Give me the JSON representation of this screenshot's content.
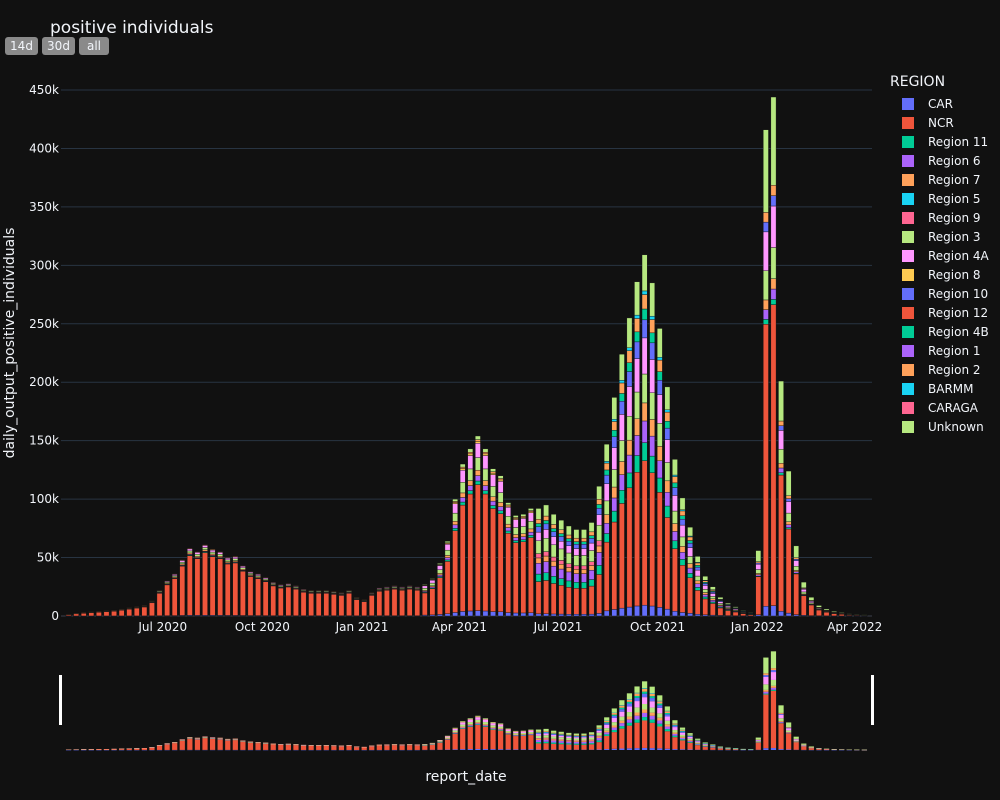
{
  "title": "positive individuals",
  "range_buttons": [
    "14d",
    "30d",
    "all"
  ],
  "legend_title": "REGION",
  "chart_data": {
    "type": "bar",
    "barmode": "stack",
    "xlabel": "report_date",
    "ylabel": "daily_output_positive_individuals",
    "x_ticks": [
      "Jul 2020",
      "Oct 2020",
      "Jan 2021",
      "Apr 2021",
      "Jul 2021",
      "Oct 2021",
      "Jan 2022",
      "Apr 2022"
    ],
    "y_ticks": [
      "0",
      "50k",
      "100k",
      "150k",
      "200k",
      "250k",
      "300k",
      "350k",
      "400k",
      "450k"
    ],
    "ylim": [
      0,
      450000
    ],
    "grid": true,
    "legend_position": "right",
    "rangeslider": true,
    "series_names": [
      "CAR",
      "NCR",
      "Region 11",
      "Region 6",
      "Region 7",
      "Region 5",
      "Region 9",
      "Region 3",
      "Region 4A",
      "Region 8",
      "Region 10",
      "Region 12",
      "Region 4B",
      "Region 1",
      "Region 2",
      "BARMM",
      "CARAGA",
      "Unknown"
    ],
    "colors": [
      "#636efa",
      "#EF553B",
      "#00cc96",
      "#ab63fa",
      "#FFA15A",
      "#19d3f3",
      "#FF6692",
      "#B6E880",
      "#FF97FF",
      "#FECB52",
      "#636efa",
      "#EF553B",
      "#00cc96",
      "#ab63fa",
      "#FFA15A",
      "#19d3f3",
      "#FF6692",
      "#B6E880"
    ],
    "weekly_totals": [
      {
        "week": "2020-04-05",
        "total": 1500
      },
      {
        "week": "2020-04-12",
        "total": 2500
      },
      {
        "week": "2020-04-19",
        "total": 3000
      },
      {
        "week": "2020-04-26",
        "total": 3500
      },
      {
        "week": "2020-05-03",
        "total": 4000
      },
      {
        "week": "2020-05-10",
        "total": 4500
      },
      {
        "week": "2020-05-17",
        "total": 5000
      },
      {
        "week": "2020-05-24",
        "total": 6000
      },
      {
        "week": "2020-05-31",
        "total": 7000
      },
      {
        "week": "2020-06-07",
        "total": 8000
      },
      {
        "week": "2020-06-14",
        "total": 9000
      },
      {
        "week": "2020-06-21",
        "total": 13000
      },
      {
        "week": "2020-06-28",
        "total": 22000
      },
      {
        "week": "2020-07-05",
        "total": 30000
      },
      {
        "week": "2020-07-12",
        "total": 36000
      },
      {
        "week": "2020-07-19",
        "total": 48000
      },
      {
        "week": "2020-07-26",
        "total": 58000
      },
      {
        "week": "2020-08-02",
        "total": 55000
      },
      {
        "week": "2020-08-09",
        "total": 61000
      },
      {
        "week": "2020-08-16",
        "total": 57000
      },
      {
        "week": "2020-08-23",
        "total": 55000
      },
      {
        "week": "2020-08-30",
        "total": 50000
      },
      {
        "week": "2020-09-06",
        "total": 51000
      },
      {
        "week": "2020-09-13",
        "total": 43000
      },
      {
        "week": "2020-09-20",
        "total": 38000
      },
      {
        "week": "2020-09-27",
        "total": 36000
      },
      {
        "week": "2020-10-04",
        "total": 33000
      },
      {
        "week": "2020-10-11",
        "total": 29000
      },
      {
        "week": "2020-10-18",
        "total": 27000
      },
      {
        "week": "2020-10-25",
        "total": 28000
      },
      {
        "week": "2020-11-01",
        "total": 26000
      },
      {
        "week": "2020-11-08",
        "total": 23000
      },
      {
        "week": "2020-11-15",
        "total": 22000
      },
      {
        "week": "2020-11-22",
        "total": 22000
      },
      {
        "week": "2020-11-29",
        "total": 22000
      },
      {
        "week": "2020-12-06",
        "total": 21000
      },
      {
        "week": "2020-12-13",
        "total": 20000
      },
      {
        "week": "2020-12-20",
        "total": 22000
      },
      {
        "week": "2020-12-27",
        "total": 16000
      },
      {
        "week": "2021-01-03",
        "total": 14000
      },
      {
        "week": "2021-01-10",
        "total": 20000
      },
      {
        "week": "2021-01-17",
        "total": 24000
      },
      {
        "week": "2021-01-24",
        "total": 25000
      },
      {
        "week": "2021-01-31",
        "total": 26000
      },
      {
        "week": "2021-02-07",
        "total": 25000
      },
      {
        "week": "2021-02-14",
        "total": 26000
      },
      {
        "week": "2021-02-21",
        "total": 25000
      },
      {
        "week": "2021-02-28",
        "total": 27000
      },
      {
        "week": "2021-03-07",
        "total": 32000
      },
      {
        "week": "2021-03-14",
        "total": 45000
      },
      {
        "week": "2021-03-21",
        "total": 64000
      },
      {
        "week": "2021-03-28",
        "total": 100000
      },
      {
        "week": "2021-04-04",
        "total": 130000
      },
      {
        "week": "2021-04-11",
        "total": 143000
      },
      {
        "week": "2021-04-18",
        "total": 154000
      },
      {
        "week": "2021-04-25",
        "total": 143000
      },
      {
        "week": "2021-05-02",
        "total": 126000
      },
      {
        "week": "2021-05-09",
        "total": 120000
      },
      {
        "week": "2021-05-16",
        "total": 97000
      },
      {
        "week": "2021-05-23",
        "total": 86000
      },
      {
        "week": "2021-05-30",
        "total": 87000
      },
      {
        "week": "2021-06-06",
        "total": 92000
      },
      {
        "week": "2021-06-13",
        "total": 92000
      },
      {
        "week": "2021-06-20",
        "total": 95000
      },
      {
        "week": "2021-06-27",
        "total": 87000
      },
      {
        "week": "2021-07-04",
        "total": 82000
      },
      {
        "week": "2021-07-11",
        "total": 77000
      },
      {
        "week": "2021-07-18",
        "total": 74000
      },
      {
        "week": "2021-07-25",
        "total": 74000
      },
      {
        "week": "2021-08-01",
        "total": 80000
      },
      {
        "week": "2021-08-08",
        "total": 111000
      },
      {
        "week": "2021-08-15",
        "total": 147000
      },
      {
        "week": "2021-08-22",
        "total": 187000
      },
      {
        "week": "2021-08-29",
        "total": 224000
      },
      {
        "week": "2021-09-05",
        "total": 255000
      },
      {
        "week": "2021-09-12",
        "total": 286000
      },
      {
        "week": "2021-09-19",
        "total": 309000
      },
      {
        "week": "2021-09-26",
        "total": 285000
      },
      {
        "week": "2021-10-03",
        "total": 246000
      },
      {
        "week": "2021-10-10",
        "total": 196000
      },
      {
        "week": "2021-10-17",
        "total": 134000
      },
      {
        "week": "2021-10-24",
        "total": 101000
      },
      {
        "week": "2021-10-31",
        "total": 76000
      },
      {
        "week": "2021-11-07",
        "total": 51000
      },
      {
        "week": "2021-11-14",
        "total": 34000
      },
      {
        "week": "2021-11-21",
        "total": 25000
      },
      {
        "week": "2021-11-28",
        "total": 16000
      },
      {
        "week": "2021-12-05",
        "total": 11000
      },
      {
        "week": "2021-12-12",
        "total": 8000
      },
      {
        "week": "2021-12-19",
        "total": 5000
      },
      {
        "week": "2021-12-26",
        "total": 3000
      },
      {
        "week": "2022-01-02",
        "total": 56000
      },
      {
        "week": "2022-01-09",
        "total": 416000
      },
      {
        "week": "2022-01-16",
        "total": 444000
      },
      {
        "week": "2022-01-23",
        "total": 201000
      },
      {
        "week": "2022-01-30",
        "total": 124000
      },
      {
        "week": "2022-02-06",
        "total": 60000
      },
      {
        "week": "2022-02-13",
        "total": 29000
      },
      {
        "week": "2022-02-20",
        "total": 16000
      },
      {
        "week": "2022-02-27",
        "total": 9000
      },
      {
        "week": "2022-03-06",
        "total": 6000
      },
      {
        "week": "2022-03-13",
        "total": 4000
      },
      {
        "week": "2022-03-20",
        "total": 3000
      },
      {
        "week": "2022-03-27",
        "total": 2000
      },
      {
        "week": "2022-04-03",
        "total": 1500
      },
      {
        "week": "2022-04-10",
        "total": 1000
      }
    ]
  }
}
